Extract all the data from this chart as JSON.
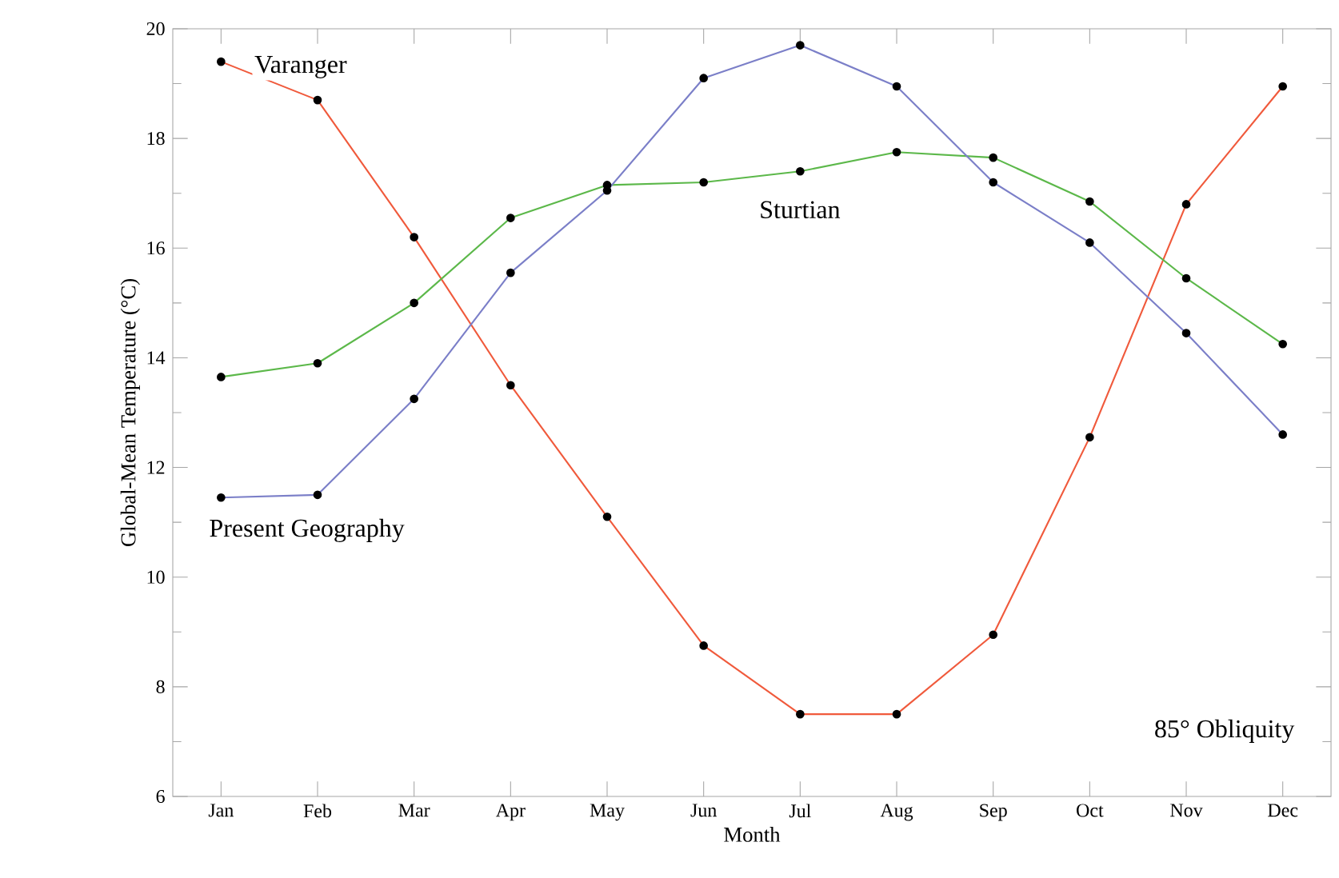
{
  "chart_data": {
    "type": "line",
    "xlabel": "Month",
    "ylabel": "Global-Mean Temperature (°C)",
    "categories": [
      "Jan",
      "Feb",
      "Mar",
      "Apr",
      "May",
      "Jun",
      "Jul",
      "Aug",
      "Sep",
      "Oct",
      "Nov",
      "Dec"
    ],
    "series": [
      {
        "name": "Varanger",
        "color": "#f05a3c",
        "values": [
          19.4,
          18.7,
          16.2,
          13.5,
          11.1,
          8.75,
          7.5,
          7.5,
          8.95,
          12.55,
          16.8,
          18.95
        ]
      },
      {
        "name": "Sturtian",
        "color": "#5cb84a",
        "values": [
          13.65,
          13.9,
          15.0,
          16.55,
          17.15,
          17.2,
          17.4,
          17.75,
          17.65,
          16.85,
          15.45,
          14.25
        ]
      },
      {
        "name": "Present Geography",
        "color": "#7b7fc8",
        "values": [
          11.45,
          11.5,
          13.25,
          15.55,
          17.05,
          19.1,
          19.7,
          18.95,
          17.2,
          16.1,
          14.45,
          12.6
        ]
      }
    ],
    "ylim": [
      6,
      20
    ],
    "yticks": [
      6,
      8,
      10,
      12,
      14,
      16,
      18,
      20
    ],
    "marker": "circle",
    "line_style": "solid",
    "grid": false,
    "annotations": [
      "85° Obliquity"
    ]
  }
}
